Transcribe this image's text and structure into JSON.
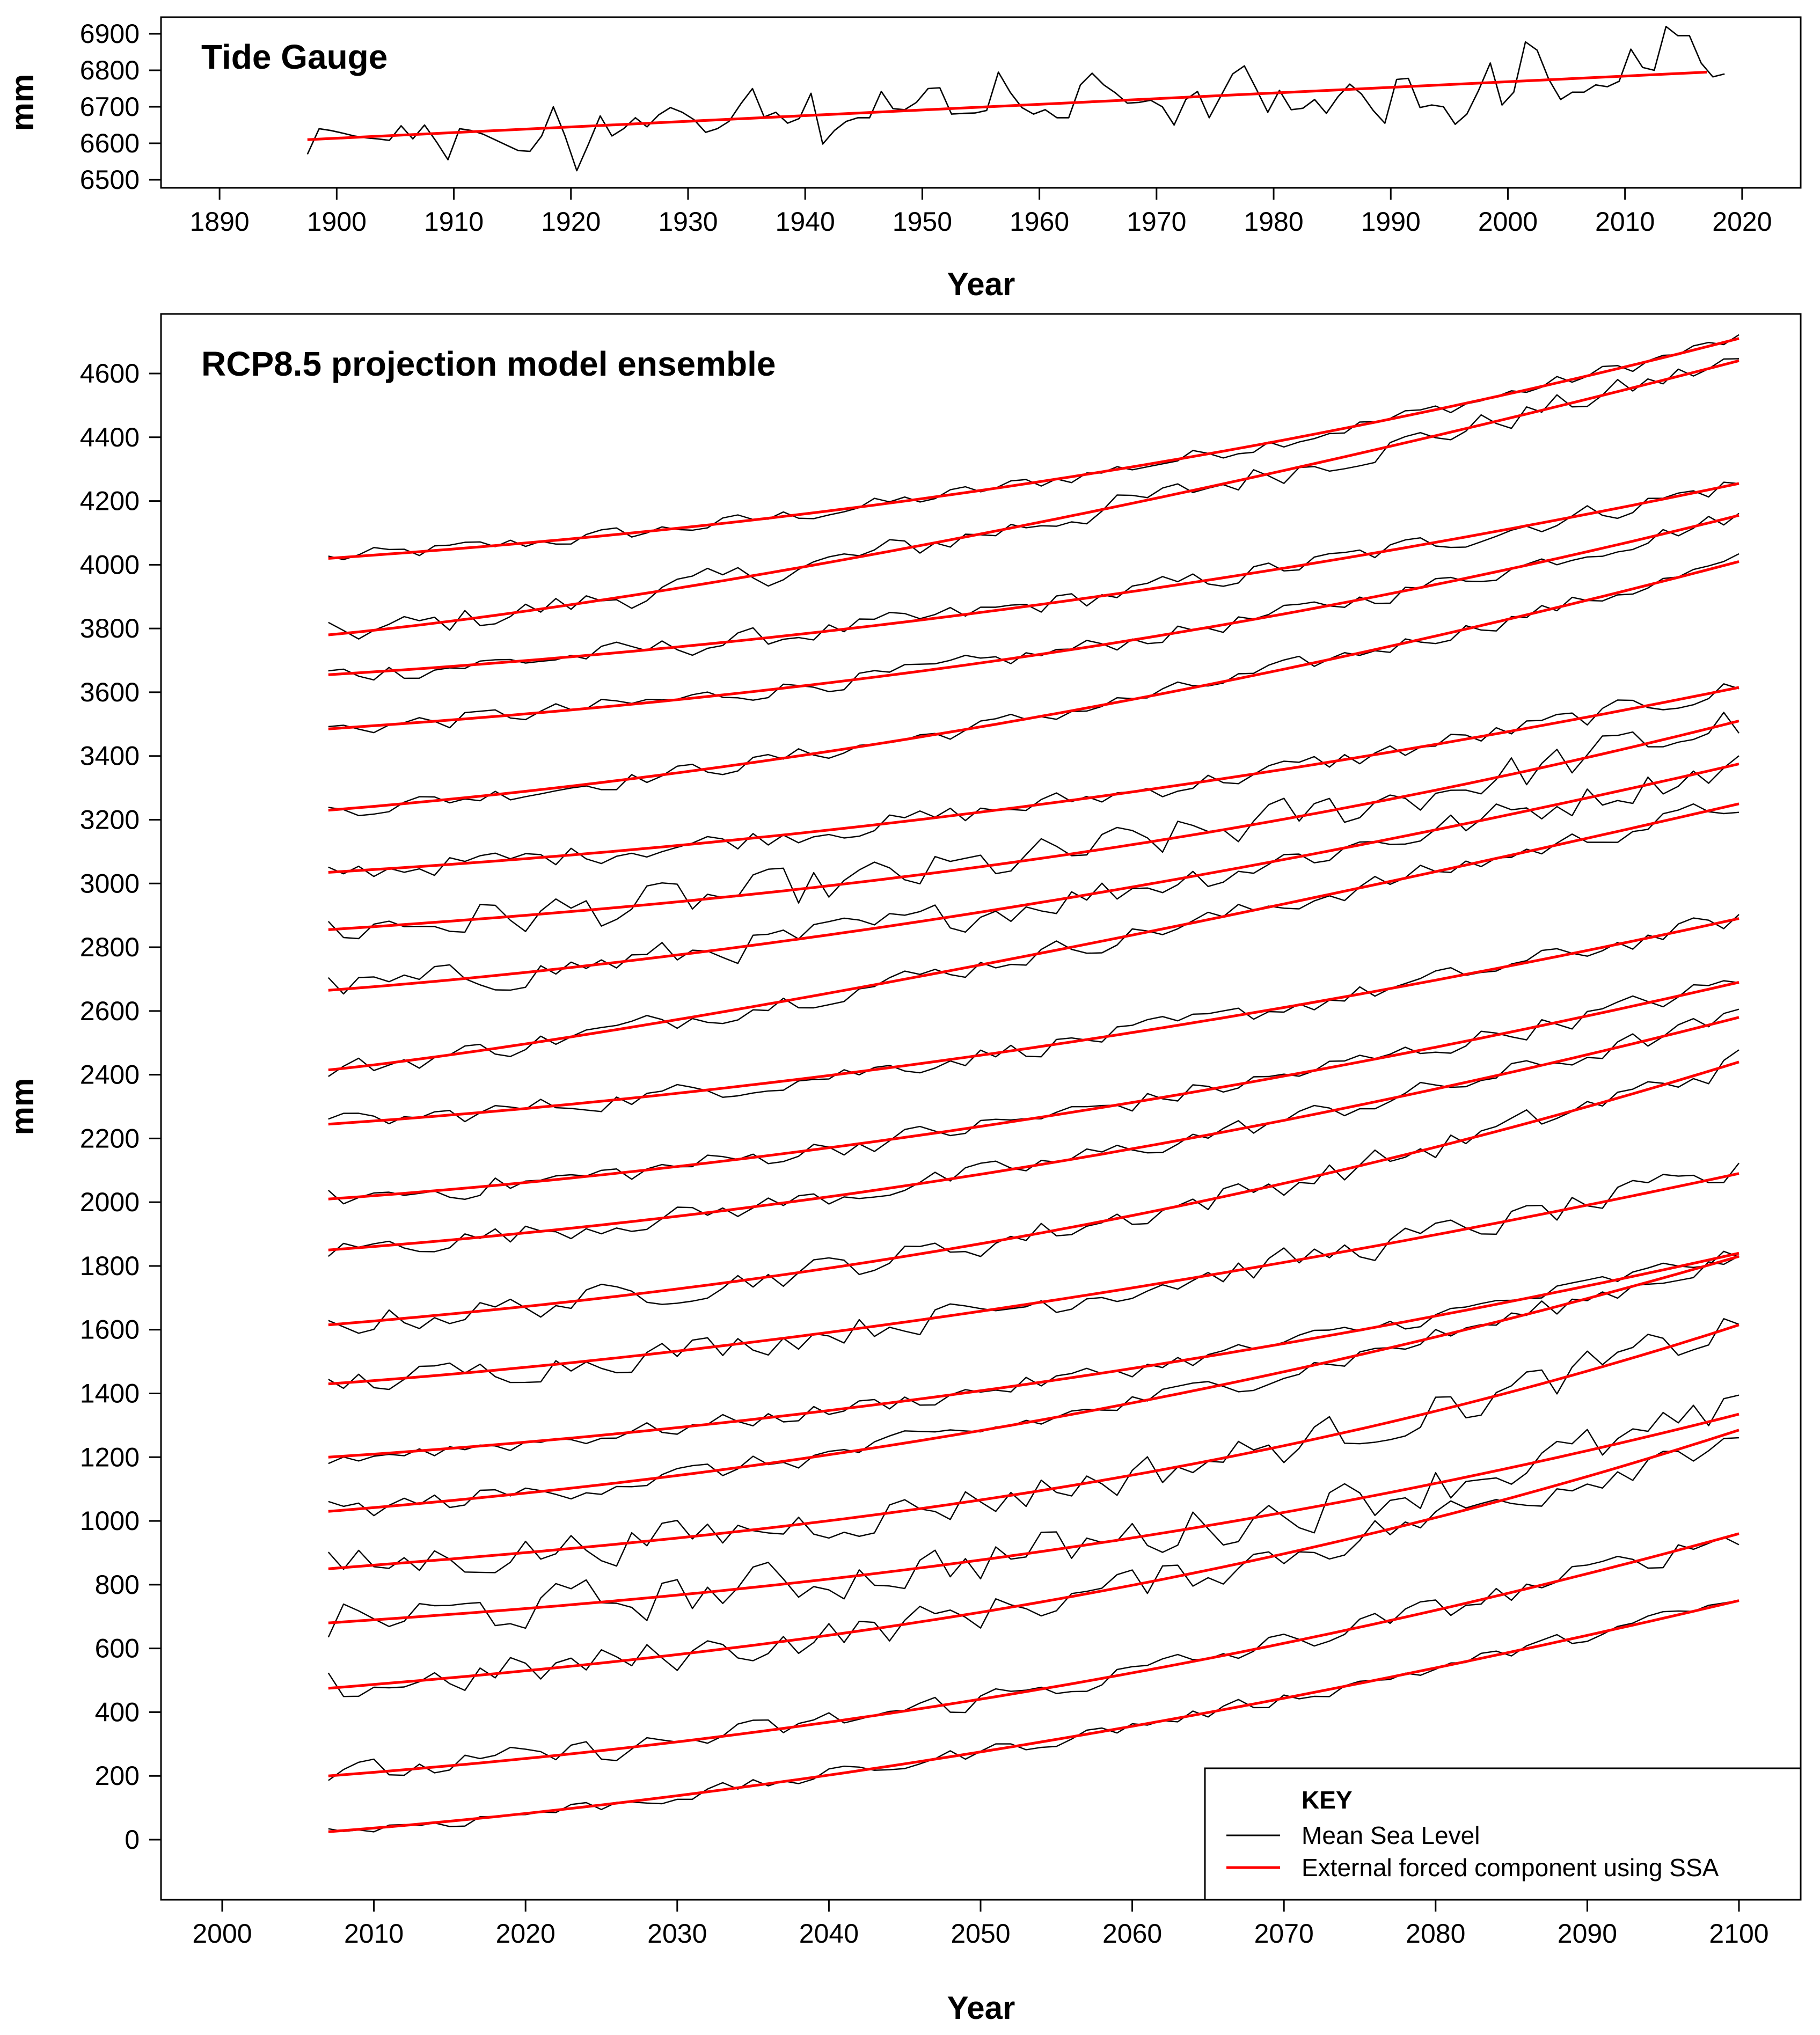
{
  "chart_data": [
    {
      "id": "tide",
      "type": "line",
      "title": "Tide Gauge",
      "xlabel": "Year",
      "ylabel": "mm",
      "xlim": [
        1885,
        2025
      ],
      "ylim": [
        6500,
        6925
      ],
      "xticks": [
        1890,
        1900,
        1910,
        1920,
        1930,
        1940,
        1950,
        1960,
        1970,
        1980,
        1990,
        2000,
        2010,
        2020
      ],
      "yticks": [
        6500,
        6600,
        6700,
        6800,
        6900
      ],
      "series": [
        {
          "name": "Mean Sea Level",
          "color": "#000000",
          "x_start": 1897.5,
          "x_step": 1,
          "values": [
            6570,
            6640,
            6635,
            6628,
            6620,
            6615,
            6612,
            6608,
            6648,
            6612,
            6650,
            6605,
            6555,
            6640,
            6635,
            6625,
            6610,
            6595,
            6580,
            6578,
            6620,
            6700,
            6620,
            6525,
            6598,
            6675,
            6620,
            6640,
            6670,
            6645,
            6678,
            6698,
            6685,
            6665,
            6630,
            6640,
            6660,
            6708,
            6750,
            6672,
            6685,
            6655,
            6668,
            6737,
            6598,
            6635,
            6660,
            6670,
            6670,
            6742,
            6695,
            6692,
            6712,
            6750,
            6752,
            6680,
            6682,
            6683,
            6690,
            6795,
            6740,
            6698,
            6680,
            6692,
            6670,
            6670,
            6760,
            6792,
            6760,
            6738,
            6710,
            6712,
            6718,
            6700,
            6650,
            6720,
            6742,
            6670,
            6730,
            6790,
            6812,
            6750,
            6685,
            6745,
            6692,
            6696,
            6720,
            6682,
            6728,
            6762,
            6735,
            6690,
            6655,
            6775,
            6778,
            6698,
            6705,
            6700,
            6652,
            6680,
            6745,
            6820,
            6705,
            6740,
            6878,
            6855,
            6775,
            6720,
            6740,
            6740,
            6760,
            6755,
            6770,
            6858,
            6808,
            6800,
            6920,
            6895,
            6895,
            6820,
            6782,
            6790
          ]
        },
        {
          "name": "External forced component using SSA",
          "color": "#ff0000",
          "x": [
            1897.5,
            2017
          ],
          "values": [
            6610,
            6795
          ]
        }
      ]
    },
    {
      "id": "rcp",
      "type": "line",
      "title": "RCP8.5 projection model ensemble",
      "xlabel": "Year",
      "ylabel": "mm",
      "xlim": [
        1996,
        2104
      ],
      "ylim": [
        -180,
        4835
      ],
      "xticks": [
        2000,
        2010,
        2020,
        2030,
        2040,
        2050,
        2060,
        2070,
        2080,
        2090,
        2100
      ],
      "yticks": [
        0,
        200,
        400,
        600,
        800,
        1000,
        1200,
        1400,
        1600,
        1800,
        2000,
        2200,
        2400,
        2600,
        2800,
        3000,
        3200,
        3400,
        3600,
        3800,
        4000,
        4200,
        4400,
        4600
      ],
      "x_range": [
        2007,
        2100
      ],
      "models": [
        {
          "start": 4020,
          "end": 4710,
          "noise": 22,
          "curve": 2.2
        },
        {
          "start": 3780,
          "end": 4640,
          "noise": 38,
          "curve": 1.6
        },
        {
          "start": 3655,
          "end": 4255,
          "noise": 30,
          "curve": 2.0
        },
        {
          "start": 3485,
          "end": 4155,
          "noise": 25,
          "curve": 2.2
        },
        {
          "start": 3230,
          "end": 4010,
          "noise": 24,
          "curve": 1.9
        },
        {
          "start": 3035,
          "end": 3615,
          "noise": 30,
          "curve": 2.0
        },
        {
          "start": 2855,
          "end": 3510,
          "noise": 60,
          "curve": 2.3
        },
        {
          "start": 2665,
          "end": 3375,
          "noise": 45,
          "curve": 1.8
        },
        {
          "start": 2415,
          "end": 3250,
          "noise": 30,
          "curve": 1.4
        },
        {
          "start": 2245,
          "end": 2890,
          "noise": 28,
          "curve": 1.9
        },
        {
          "start": 2010,
          "end": 2690,
          "noise": 30,
          "curve": 1.9
        },
        {
          "start": 1850,
          "end": 2580,
          "noise": 30,
          "curve": 2.0
        },
        {
          "start": 1615,
          "end": 2440,
          "noise": 38,
          "curve": 2.2
        },
        {
          "start": 1430,
          "end": 2090,
          "noise": 40,
          "curve": 1.8
        },
        {
          "start": 1200,
          "end": 1840,
          "noise": 25,
          "curve": 2.0
        },
        {
          "start": 1030,
          "end": 1830,
          "noise": 30,
          "curve": 2.1
        },
        {
          "start": 850,
          "end": 1615,
          "noise": 55,
          "curve": 2.6
        },
        {
          "start": 680,
          "end": 1335,
          "noise": 65,
          "curve": 2.3
        },
        {
          "start": 475,
          "end": 1285,
          "noise": 50,
          "curve": 2.4
        },
        {
          "start": 200,
          "end": 960,
          "noise": 35,
          "curve": 2.1
        },
        {
          "start": 25,
          "end": 750,
          "noise": 20,
          "curve": 1.8
        }
      ],
      "series_styles": [
        {
          "name": "Mean Sea Level",
          "color": "#000000"
        },
        {
          "name": "External forced component using SSA",
          "color": "#ff0000"
        }
      ],
      "legend": {
        "position": "bottom-right",
        "title": "KEY",
        "entries": [
          "Mean Sea Level",
          "External forced component using SSA"
        ]
      }
    }
  ]
}
